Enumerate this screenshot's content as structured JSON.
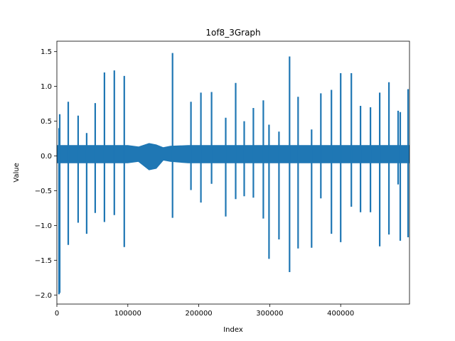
{
  "chart_data": {
    "type": "line",
    "title": "1of8_3Graph",
    "xlabel": "Index",
    "ylabel": "Value",
    "xlim": [
      0,
      497000
    ],
    "ylim": [
      -2.13,
      1.65
    ],
    "xticks": [
      0,
      100000,
      200000,
      300000,
      400000
    ],
    "xtick_labels": [
      "0",
      "100000",
      "200000",
      "300000",
      "400000"
    ],
    "yticks": [
      -2.0,
      -1.5,
      -1.0,
      -0.5,
      0.0,
      0.5,
      1.0,
      1.5
    ],
    "ytick_labels": [
      "−2.0",
      "−1.5",
      "−1.0",
      "−0.5",
      "0.0",
      "0.5",
      "1.0",
      "1.5"
    ],
    "grid": false,
    "line_color": "#1f77b4",
    "noise_band": [
      {
        "x": 0,
        "lo": -0.1,
        "hi": 0.15
      },
      {
        "x": 100000,
        "lo": -0.1,
        "hi": 0.15
      },
      {
        "x": 115000,
        "lo": -0.08,
        "hi": 0.13
      },
      {
        "x": 130000,
        "lo": -0.2,
        "hi": 0.18
      },
      {
        "x": 140000,
        "lo": -0.18,
        "hi": 0.16
      },
      {
        "x": 150000,
        "lo": -0.06,
        "hi": 0.12
      },
      {
        "x": 160000,
        "lo": -0.08,
        "hi": 0.14
      },
      {
        "x": 185000,
        "lo": -0.1,
        "hi": 0.15
      },
      {
        "x": 497000,
        "lo": -0.1,
        "hi": 0.15
      }
    ],
    "spikes": [
      {
        "x": 3000,
        "max": 0.4,
        "min": -1.99
      },
      {
        "x": 4000,
        "max": 0.6,
        "min": -1.97
      },
      {
        "x": 16000,
        "max": 0.78,
        "min": -1.28
      },
      {
        "x": 30000,
        "max": 0.58,
        "min": -0.96
      },
      {
        "x": 42000,
        "max": 0.33,
        "min": -1.12
      },
      {
        "x": 54000,
        "max": 0.76,
        "min": -0.82
      },
      {
        "x": 67000,
        "max": 1.2,
        "min": -0.95
      },
      {
        "x": 81000,
        "max": 1.23,
        "min": -0.85
      },
      {
        "x": 95000,
        "max": 1.15,
        "min": -1.31
      },
      {
        "x": 163000,
        "max": 1.48,
        "min": -0.89
      },
      {
        "x": 189000,
        "max": 0.78,
        "min": -0.49
      },
      {
        "x": 203000,
        "max": 0.91,
        "min": -0.67
      },
      {
        "x": 218000,
        "max": 0.92,
        "min": -0.4
      },
      {
        "x": 238000,
        "max": 0.55,
        "min": -0.87
      },
      {
        "x": 252000,
        "max": 1.05,
        "min": -0.62
      },
      {
        "x": 264000,
        "max": 0.5,
        "min": -0.58
      },
      {
        "x": 277000,
        "max": 0.69,
        "min": -0.6
      },
      {
        "x": 291000,
        "max": 0.8,
        "min": -0.9
      },
      {
        "x": 299000,
        "max": 0.45,
        "min": -1.48
      },
      {
        "x": 313000,
        "max": 0.35,
        "min": -1.2
      },
      {
        "x": 328000,
        "max": 1.43,
        "min": -1.67
      },
      {
        "x": 340000,
        "max": 0.85,
        "min": -1.33
      },
      {
        "x": 359000,
        "max": 0.38,
        "min": -1.32
      },
      {
        "x": 372000,
        "max": 0.9,
        "min": -0.61
      },
      {
        "x": 387000,
        "max": 0.95,
        "min": -1.12
      },
      {
        "x": 400000,
        "max": 1.19,
        "min": -1.24
      },
      {
        "x": 415000,
        "max": 1.19,
        "min": -0.73
      },
      {
        "x": 428000,
        "max": 0.72,
        "min": -0.81
      },
      {
        "x": 442000,
        "max": 0.7,
        "min": -0.81
      },
      {
        "x": 455000,
        "max": 0.91,
        "min": -1.3
      },
      {
        "x": 468000,
        "max": 1.06,
        "min": -1.13
      },
      {
        "x": 481000,
        "max": 0.65,
        "min": -0.41
      },
      {
        "x": 484000,
        "max": 0.63,
        "min": -1.22
      },
      {
        "x": 495000,
        "max": 0.96,
        "min": -1.17
      }
    ]
  }
}
